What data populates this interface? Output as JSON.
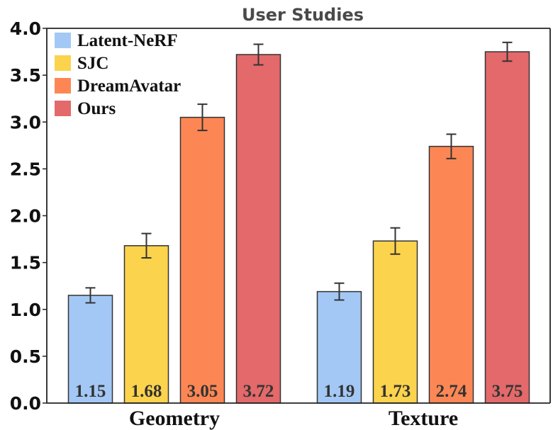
{
  "chart_data": {
    "type": "bar",
    "title": "User Studies",
    "xlabel": "",
    "ylabel": "",
    "ylim": [
      0,
      4.0
    ],
    "yticks": [
      "0.0",
      "0.5",
      "1.0",
      "1.5",
      "2.0",
      "2.5",
      "3.0",
      "3.5",
      "4.0"
    ],
    "categories": [
      "Geometry",
      "Texture"
    ],
    "legend_position": "top-left",
    "series": [
      {
        "name": "Latent-NeRF",
        "color": "#a3c8f5",
        "values": [
          1.15,
          1.19
        ],
        "errors": [
          0.08,
          0.09
        ],
        "labels": [
          "1.15",
          "1.19"
        ]
      },
      {
        "name": "SJC",
        "color": "#fcd34d",
        "values": [
          1.68,
          1.73
        ],
        "errors": [
          0.13,
          0.14
        ],
        "labels": [
          "1.68",
          "1.73"
        ]
      },
      {
        "name": "DreamAvatar",
        "color": "#fd8754",
        "values": [
          3.05,
          2.74
        ],
        "errors": [
          0.14,
          0.13
        ],
        "labels": [
          "3.05",
          "2.74"
        ]
      },
      {
        "name": "Ours",
        "color": "#e3696a",
        "values": [
          3.72,
          3.75
        ],
        "errors": [
          0.11,
          0.1
        ],
        "labels": [
          "3.72",
          "3.75"
        ]
      }
    ]
  }
}
